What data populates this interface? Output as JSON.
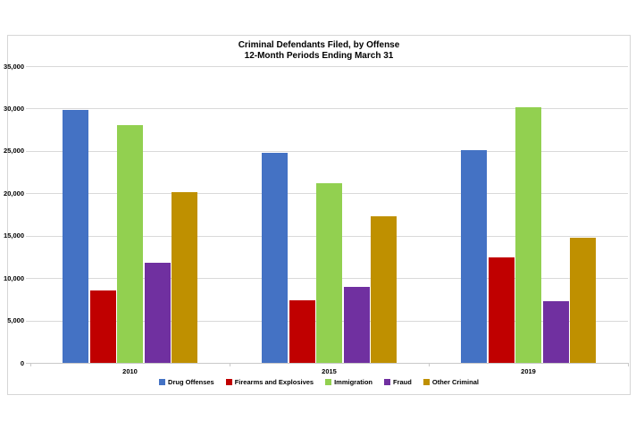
{
  "chart_data": {
    "type": "bar",
    "title": "Criminal Defendants Filed, by Offense",
    "subtitle": "12-Month Periods Ending March 31",
    "categories": [
      "2010",
      "2015",
      "2019"
    ],
    "series": [
      {
        "name": "Drug Offenses",
        "color": "#4472C4",
        "values": [
          29800,
          24800,
          25100
        ]
      },
      {
        "name": "Firearms and Explosives",
        "color": "#C00000",
        "values": [
          8500,
          7400,
          12400
        ]
      },
      {
        "name": "Immigration",
        "color": "#92D050",
        "values": [
          28000,
          21200,
          30200
        ]
      },
      {
        "name": "Fraud",
        "color": "#7030A0",
        "values": [
          11800,
          9000,
          7300
        ]
      },
      {
        "name": "Other Criminal",
        "color": "#BF9000",
        "values": [
          20100,
          17300,
          14800
        ]
      }
    ],
    "xlabel": "",
    "ylabel": "",
    "ylim": [
      0,
      35000
    ],
    "ytick_step": 5000,
    "ytick_labels": [
      "0",
      "5,000",
      "10,000",
      "15,000",
      "20,000",
      "25,000",
      "30,000",
      "35,000"
    ],
    "grid": true,
    "legend_position": "bottom"
  },
  "colors": {
    "background": "#FFFFFF",
    "frame_border": "#D6D6D6",
    "gridline": "#D9D9D9",
    "axis": "#C9C9C9",
    "text": "#000000"
  }
}
